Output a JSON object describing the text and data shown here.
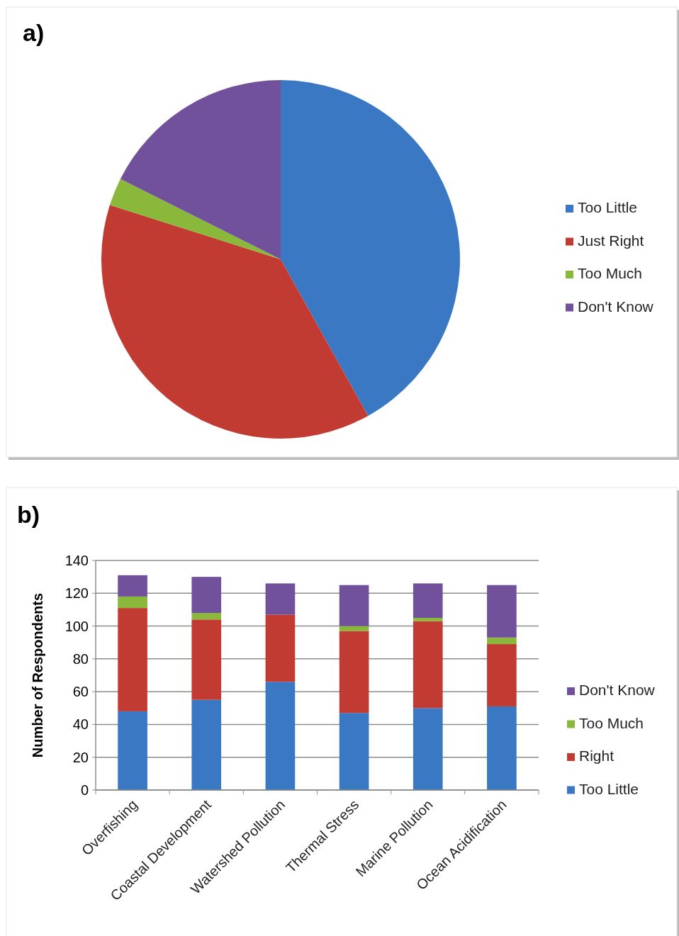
{
  "chart_data": [
    {
      "type": "pie",
      "title": "a)",
      "categories": [
        "Too Little",
        "Just Right",
        "Too Much",
        "Don't Know"
      ],
      "values": [
        41.9,
        38.0,
        2.5,
        17.6
      ],
      "colors": [
        "#3a78c4",
        "#c23b33",
        "#8ab83a",
        "#71519c"
      ],
      "legend": "right"
    },
    {
      "type": "bar",
      "title": "b)",
      "ylabel": "Number of Respondents",
      "categories": [
        "Overfishing",
        "Coastal Development",
        "Watershed Pollution",
        "Thermal Stress",
        "Marine Pollution",
        "Ocean Acidification"
      ],
      "stacked": true,
      "ylim": [
        0,
        140
      ],
      "yticks": [
        0,
        20,
        40,
        60,
        80,
        100,
        120,
        140
      ],
      "grid": "y",
      "legend": "right",
      "series": [
        {
          "name": "Too Little",
          "color": "#3a78c4",
          "values": [
            48,
            55,
            66,
            47,
            50,
            51
          ]
        },
        {
          "name": "Right",
          "color": "#c23b33",
          "values": [
            63,
            49,
            41,
            50,
            53,
            38
          ]
        },
        {
          "name": "Too Much",
          "color": "#8ab83a",
          "values": [
            7,
            4,
            0,
            3,
            2,
            4
          ]
        },
        {
          "name": "Don't Know",
          "color": "#71519c",
          "values": [
            13,
            22,
            19,
            25,
            21,
            32
          ]
        }
      ]
    }
  ]
}
